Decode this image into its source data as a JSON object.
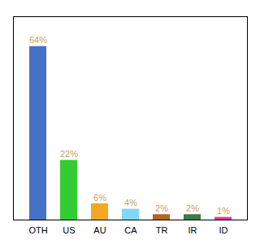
{
  "chart_data": {
    "type": "bar",
    "categories": [
      "OTH",
      "US",
      "AU",
      "CA",
      "TR",
      "IR",
      "ID"
    ],
    "values": [
      64,
      22,
      6,
      4,
      2,
      2,
      1
    ],
    "value_labels": [
      "64%",
      "22%",
      "6%",
      "4%",
      "2%",
      "2%",
      "1%"
    ],
    "colors": [
      "#4472c4",
      "#33cc33",
      "#f5a623",
      "#7fd8f5",
      "#b8621a",
      "#3a7d44",
      "#ff3399"
    ],
    "ylim": [
      0,
      75
    ],
    "yticks": [],
    "data_labels": true,
    "tick_labels": "x",
    "grid": false
  }
}
